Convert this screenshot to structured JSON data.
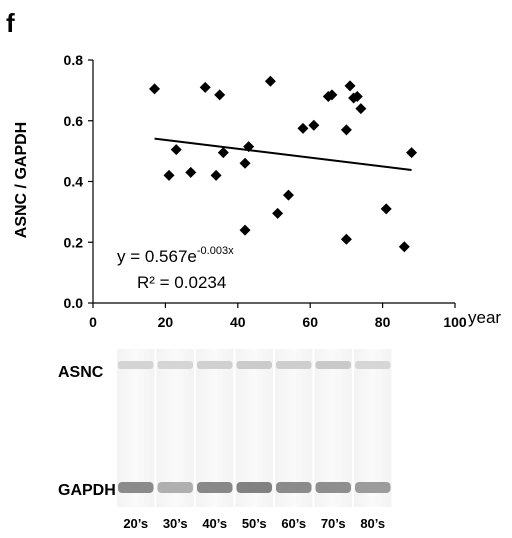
{
  "panel_label": "f",
  "chart_data": {
    "type": "scatter",
    "title": "",
    "xlabel": "year",
    "ylabel": "ASNC / GAPDH",
    "xlim": [
      0,
      100
    ],
    "ylim": [
      0.0,
      0.8
    ],
    "xticks": [
      "0",
      "20",
      "40",
      "60",
      "80",
      "100"
    ],
    "yticks": [
      "0.0",
      "0.2",
      "0.4",
      "0.6",
      "0.8"
    ],
    "grid": false,
    "points": [
      {
        "x": 17,
        "y": 0.705
      },
      {
        "x": 21,
        "y": 0.42
      },
      {
        "x": 23,
        "y": 0.505
      },
      {
        "x": 27,
        "y": 0.43
      },
      {
        "x": 31,
        "y": 0.71
      },
      {
        "x": 34,
        "y": 0.42
      },
      {
        "x": 35,
        "y": 0.685
      },
      {
        "x": 36,
        "y": 0.495
      },
      {
        "x": 42,
        "y": 0.46
      },
      {
        "x": 42,
        "y": 0.24
      },
      {
        "x": 43,
        "y": 0.515
      },
      {
        "x": 49,
        "y": 0.73
      },
      {
        "x": 51,
        "y": 0.295
      },
      {
        "x": 54,
        "y": 0.355
      },
      {
        "x": 58,
        "y": 0.575
      },
      {
        "x": 61,
        "y": 0.585
      },
      {
        "x": 65,
        "y": 0.68
      },
      {
        "x": 66,
        "y": 0.685
      },
      {
        "x": 70,
        "y": 0.57
      },
      {
        "x": 70,
        "y": 0.21
      },
      {
        "x": 71,
        "y": 0.715
      },
      {
        "x": 72,
        "y": 0.675
      },
      {
        "x": 73,
        "y": 0.68
      },
      {
        "x": 74,
        "y": 0.64
      },
      {
        "x": 81,
        "y": 0.31
      },
      {
        "x": 86,
        "y": 0.185
      },
      {
        "x": 88,
        "y": 0.495
      }
    ],
    "trendline": {
      "x": [
        17,
        88
      ],
      "y": [
        0.541,
        0.438
      ]
    },
    "annotations": {
      "eq_prefix": "y = 0.567e",
      "eq_exponent": "-0.003x",
      "r2": "R² = 0.0234"
    }
  },
  "blot": {
    "rows": [
      "ASNC",
      "GAPDH"
    ],
    "lanes": [
      "20’s",
      "30’s",
      "40’s",
      "50’s",
      "60’s",
      "70’s",
      "80’s"
    ],
    "asnc_intensity": [
      0.3,
      0.28,
      0.34,
      0.4,
      0.36,
      0.42,
      0.26
    ],
    "gapdh_intensity": [
      0.7,
      0.42,
      0.72,
      0.78,
      0.7,
      0.68,
      0.58
    ]
  }
}
